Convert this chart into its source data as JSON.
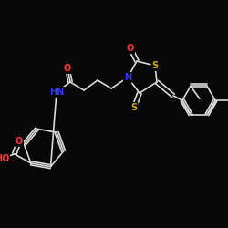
{
  "bg_color": "#080808",
  "bond_color": "#d8d8d8",
  "atom_colors": {
    "O": "#ff3333",
    "N": "#3333ff",
    "S": "#ccaa00",
    "HO": "#ff3333"
  },
  "figsize": [
    2.5,
    2.5
  ],
  "dpi": 100
}
